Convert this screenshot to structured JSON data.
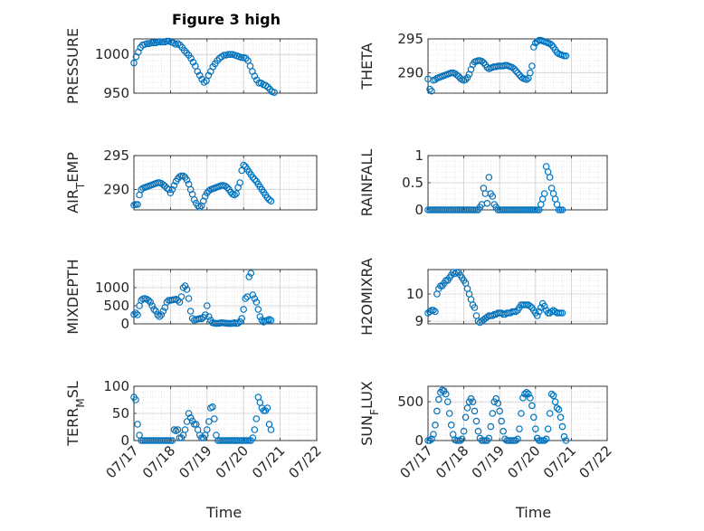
{
  "figure_title": "Figure 3 high",
  "xlabel_left": "Time",
  "xlabel_right": "Time",
  "colors": {
    "marker": "#0072BD",
    "grid": "#dcdcdc",
    "axis": "#262626"
  },
  "chart_data": [
    {
      "type": "scatter",
      "ylabel": "PRESSURE",
      "ylabel_sub": "",
      "xlim": [
        17,
        22
      ],
      "ylim": [
        950,
        1020
      ],
      "yticks": [
        950,
        1000
      ],
      "x": [
        17.0,
        17.06,
        17.12,
        17.18,
        17.24,
        17.3,
        17.36,
        17.42,
        17.48,
        17.54,
        17.6,
        17.66,
        17.72,
        17.78,
        17.84,
        17.9,
        17.96,
        18.02,
        18.08,
        18.14,
        18.2,
        18.26,
        18.32,
        18.38,
        18.44,
        18.5,
        18.56,
        18.62,
        18.68,
        18.74,
        18.8,
        18.86,
        18.92,
        18.98,
        19.04,
        19.1,
        19.16,
        19.22,
        19.28,
        19.34,
        19.4,
        19.46,
        19.52,
        19.58,
        19.64,
        19.7,
        19.76,
        19.82,
        19.88,
        19.94,
        20.0,
        20.06,
        20.12,
        20.18,
        20.24,
        20.3,
        20.36,
        20.42,
        20.48,
        20.54,
        20.6,
        20.66,
        20.72,
        20.78,
        20.84
      ],
      "y": [
        989,
        997,
        1003,
        1009,
        1012,
        1013,
        1014,
        1014,
        1015,
        1015,
        1015,
        1016,
        1016,
        1016,
        1016,
        1017,
        1017,
        1016,
        1015,
        1013,
        1014,
        1012,
        1009,
        1005,
        1002,
        999,
        995,
        990,
        985,
        978,
        973,
        968,
        964,
        966,
        973,
        978,
        984,
        988,
        992,
        995,
        997,
        999,
        999,
        1000,
        1000,
        1000,
        999,
        998,
        997,
        996,
        996,
        995,
        992,
        985,
        978,
        972,
        967,
        963,
        963,
        961,
        960,
        958,
        955,
        952,
        951
      ]
    },
    {
      "type": "scatter",
      "ylabel": "THETA",
      "ylabel_sub": "",
      "xlim": [
        17,
        22
      ],
      "ylim": [
        287,
        295
      ],
      "yticks": [
        290,
        295
      ],
      "x": [
        17.0,
        17.05,
        17.1,
        17.15,
        17.2,
        17.25,
        17.3,
        17.35,
        17.4,
        17.45,
        17.5,
        17.55,
        17.6,
        17.65,
        17.7,
        17.75,
        17.8,
        17.85,
        17.9,
        17.95,
        18.0,
        18.05,
        18.1,
        18.15,
        18.2,
        18.25,
        18.3,
        18.35,
        18.4,
        18.45,
        18.5,
        18.55,
        18.6,
        18.65,
        18.7,
        18.75,
        18.8,
        18.85,
        18.9,
        18.95,
        19.0,
        19.05,
        19.1,
        19.15,
        19.2,
        19.25,
        19.3,
        19.35,
        19.4,
        19.45,
        19.5,
        19.55,
        19.6,
        19.65,
        19.7,
        19.75,
        19.8,
        19.85,
        19.9,
        19.95,
        20.0,
        20.05,
        20.1,
        20.15,
        20.2,
        20.25,
        20.3,
        20.35,
        20.4,
        20.45,
        20.5,
        20.55,
        20.6,
        20.65,
        20.7,
        20.75,
        20.8,
        20.85
      ],
      "y": [
        289.1,
        287.6,
        287.3,
        288.9,
        289.0,
        289.2,
        289.3,
        289.4,
        289.5,
        289.6,
        289.7,
        289.8,
        289.9,
        290.0,
        290.0,
        289.9,
        289.7,
        289.5,
        289.2,
        289.0,
        288.9,
        289.0,
        289.3,
        289.8,
        290.5,
        291.2,
        291.6,
        291.7,
        291.8,
        291.8,
        291.7,
        291.5,
        291.2,
        290.8,
        290.6,
        290.7,
        290.8,
        290.9,
        290.9,
        291.0,
        291.0,
        291.0,
        291.0,
        291.1,
        291.1,
        291.0,
        290.9,
        290.8,
        290.6,
        290.3,
        290.0,
        289.7,
        289.4,
        289.2,
        289.1,
        289.0,
        289.2,
        290.0,
        291.0,
        293.8,
        294.4,
        294.6,
        294.8,
        294.8,
        294.7,
        294.6,
        294.5,
        294.4,
        294.3,
        294.1,
        293.8,
        293.4,
        293.0,
        292.8,
        292.7,
        292.6,
        292.5,
        292.5
      ]
    },
    {
      "type": "scatter",
      "ylabel": "AIR",
      "ylabel_sub": "T",
      "ylabel_rest": "EMP",
      "xlim": [
        17,
        22
      ],
      "ylim": [
        287,
        295
      ],
      "yticks": [
        290,
        295
      ],
      "x": [
        17.0,
        17.05,
        17.1,
        17.15,
        17.2,
        17.25,
        17.3,
        17.35,
        17.4,
        17.45,
        17.5,
        17.55,
        17.6,
        17.65,
        17.7,
        17.75,
        17.8,
        17.85,
        17.9,
        17.95,
        18.0,
        18.05,
        18.1,
        18.15,
        18.2,
        18.25,
        18.3,
        18.35,
        18.4,
        18.45,
        18.5,
        18.55,
        18.6,
        18.65,
        18.7,
        18.75,
        18.8,
        18.85,
        18.9,
        18.95,
        19.0,
        19.05,
        19.1,
        19.15,
        19.2,
        19.25,
        19.3,
        19.35,
        19.4,
        19.45,
        19.5,
        19.55,
        19.6,
        19.65,
        19.7,
        19.75,
        19.8,
        19.85,
        19.9,
        19.95,
        20.0,
        20.05,
        20.1,
        20.15,
        20.2,
        20.25,
        20.3,
        20.35,
        20.4,
        20.45,
        20.5,
        20.55,
        20.6,
        20.65,
        20.7,
        20.75
      ],
      "y": [
        287.7,
        287.8,
        287.8,
        289.2,
        290.0,
        290.2,
        290.3,
        290.4,
        290.5,
        290.6,
        290.7,
        290.8,
        290.9,
        291.0,
        291.0,
        290.9,
        290.7,
        290.5,
        290.2,
        290.0,
        289.5,
        290.0,
        290.6,
        291.2,
        291.6,
        291.9,
        292.0,
        292.0,
        291.8,
        291.4,
        290.8,
        290.0,
        289.3,
        288.5,
        288.0,
        287.6,
        287.4,
        287.6,
        288.3,
        289.0,
        289.5,
        289.8,
        290.0,
        290.1,
        290.2,
        290.3,
        290.4,
        290.5,
        290.6,
        290.6,
        290.5,
        290.3,
        290.0,
        289.6,
        289.3,
        289.2,
        289.4,
        290.3,
        291.0,
        292.8,
        293.6,
        293.4,
        293.0,
        292.6,
        292.2,
        291.8,
        291.5,
        291.2,
        290.8,
        290.4,
        290.0,
        289.6,
        289.2,
        288.8,
        288.5,
        288.3
      ]
    },
    {
      "type": "scatter",
      "ylabel": "RAINFALL",
      "ylabel_sub": "",
      "xlim": [
        17,
        22
      ],
      "ylim": [
        0,
        1
      ],
      "yticks": [
        0,
        0.5,
        1
      ],
      "x": [
        17.0,
        17.05,
        17.1,
        17.15,
        17.2,
        17.25,
        17.3,
        17.35,
        17.4,
        17.45,
        17.5,
        17.55,
        17.6,
        17.65,
        17.7,
        17.75,
        17.8,
        17.85,
        17.9,
        17.95,
        18.0,
        18.05,
        18.1,
        18.15,
        18.2,
        18.25,
        18.3,
        18.35,
        18.4,
        18.45,
        18.5,
        18.55,
        18.6,
        18.65,
        18.7,
        18.75,
        18.8,
        18.85,
        18.9,
        18.95,
        19.0,
        19.05,
        19.1,
        19.15,
        19.2,
        19.25,
        19.3,
        19.35,
        19.4,
        19.45,
        19.5,
        19.55,
        19.6,
        19.65,
        19.7,
        19.75,
        19.8,
        19.85,
        19.9,
        19.95,
        20.0,
        20.05,
        20.1,
        20.15,
        20.2,
        20.25,
        20.3,
        20.35,
        20.4,
        20.45,
        20.5,
        20.55,
        20.6,
        20.65,
        20.7,
        20.75
      ],
      "y": [
        0,
        0,
        0,
        0,
        0,
        0,
        0,
        0,
        0,
        0,
        0,
        0,
        0,
        0,
        0,
        0,
        0,
        0,
        0,
        0,
        0,
        0,
        0,
        0,
        0,
        0,
        0,
        0,
        0,
        0.05,
        0.1,
        0.4,
        0.3,
        0.12,
        0.6,
        0.3,
        0.25,
        0.1,
        0.05,
        0,
        0,
        0,
        0,
        0,
        0,
        0,
        0,
        0,
        0,
        0,
        0,
        0,
        0,
        0,
        0,
        0,
        0,
        0,
        0,
        0,
        0,
        0,
        0,
        0.1,
        0.2,
        0.3,
        0.8,
        0.7,
        0.6,
        0.4,
        0.3,
        0.2,
        0.1,
        0,
        0,
        0
      ]
    },
    {
      "type": "scatter",
      "ylabel": "MIXDEPTH",
      "ylabel_sub": "",
      "xlim": [
        17,
        22
      ],
      "ylim": [
        0,
        1500
      ],
      "yticks": [
        0,
        500,
        1000
      ],
      "x": [
        17.0,
        17.05,
        17.1,
        17.15,
        17.2,
        17.25,
        17.3,
        17.35,
        17.4,
        17.45,
        17.5,
        17.55,
        17.6,
        17.65,
        17.7,
        17.75,
        17.8,
        17.85,
        17.9,
        17.95,
        18.0,
        18.05,
        18.1,
        18.15,
        18.2,
        18.25,
        18.3,
        18.35,
        18.4,
        18.45,
        18.5,
        18.55,
        18.6,
        18.65,
        18.7,
        18.75,
        18.8,
        18.85,
        18.9,
        18.95,
        19.0,
        19.05,
        19.1,
        19.15,
        19.2,
        19.25,
        19.3,
        19.35,
        19.4,
        19.45,
        19.5,
        19.55,
        19.6,
        19.65,
        19.7,
        19.75,
        19.8,
        19.85,
        19.9,
        19.95,
        20.0,
        20.05,
        20.1,
        20.15,
        20.2,
        20.25,
        20.3,
        20.35,
        20.4,
        20.45,
        20.5,
        20.55,
        20.6,
        20.65,
        20.7,
        20.75
      ],
      "y": [
        260,
        300,
        250,
        500,
        650,
        690,
        700,
        680,
        650,
        600,
        500,
        400,
        350,
        250,
        200,
        250,
        350,
        450,
        600,
        650,
        650,
        660,
        670,
        680,
        650,
        600,
        750,
        1000,
        1050,
        950,
        700,
        350,
        150,
        100,
        120,
        130,
        150,
        140,
        180,
        250,
        500,
        200,
        100,
        30,
        20,
        10,
        15,
        20,
        30,
        25,
        20,
        15,
        10,
        10,
        15,
        30,
        10,
        20,
        60,
        150,
        400,
        700,
        750,
        1300,
        1400,
        800,
        700,
        600,
        400,
        200,
        100,
        50,
        80,
        100,
        120,
        100
      ]
    },
    {
      "type": "scatter",
      "ylabel": "H2OMIXRA",
      "ylabel_sub": "",
      "xlim": [
        17,
        22
      ],
      "ylim": [
        8.9,
        10.9
      ],
      "yticks": [
        9,
        10
      ],
      "x": [
        17.0,
        17.05,
        17.1,
        17.15,
        17.2,
        17.25,
        17.3,
        17.35,
        17.4,
        17.45,
        17.5,
        17.55,
        17.6,
        17.65,
        17.7,
        17.75,
        17.8,
        17.85,
        17.9,
        17.95,
        18.0,
        18.05,
        18.1,
        18.15,
        18.2,
        18.25,
        18.3,
        18.35,
        18.4,
        18.45,
        18.5,
        18.55,
        18.6,
        18.65,
        18.7,
        18.75,
        18.8,
        18.85,
        18.9,
        18.95,
        19.0,
        19.05,
        19.1,
        19.15,
        19.2,
        19.25,
        19.3,
        19.35,
        19.4,
        19.45,
        19.5,
        19.55,
        19.6,
        19.65,
        19.7,
        19.75,
        19.8,
        19.85,
        19.9,
        19.95,
        20.0,
        20.05,
        20.1,
        20.15,
        20.2,
        20.25,
        20.3,
        20.35,
        20.4,
        20.45,
        20.5,
        20.55,
        20.6,
        20.65,
        20.7,
        20.75
      ],
      "y": [
        9.3,
        9.35,
        9.4,
        9.4,
        9.35,
        10.0,
        10.2,
        10.3,
        10.3,
        10.4,
        10.5,
        10.5,
        10.6,
        10.7,
        10.8,
        10.75,
        10.8,
        10.8,
        10.7,
        10.6,
        10.5,
        10.4,
        10.2,
        10.0,
        9.8,
        9.6,
        9.5,
        9.2,
        9.0,
        8.95,
        9.0,
        9.05,
        9.1,
        9.15,
        9.2,
        9.2,
        9.2,
        9.25,
        9.25,
        9.3,
        9.3,
        9.3,
        9.25,
        9.25,
        9.3,
        9.3,
        9.3,
        9.35,
        9.35,
        9.35,
        9.4,
        9.5,
        9.6,
        9.6,
        9.6,
        9.6,
        9.6,
        9.55,
        9.5,
        9.4,
        9.3,
        9.2,
        9.35,
        9.5,
        9.65,
        9.55,
        9.4,
        9.3,
        9.3,
        9.35,
        9.4,
        9.35,
        9.3,
        9.3,
        9.3,
        9.3
      ]
    },
    {
      "type": "scatter",
      "ylabel": "TERR",
      "ylabel_sub": "M",
      "ylabel_rest": "SL",
      "xlim": [
        17,
        22
      ],
      "ylim": [
        0,
        100
      ],
      "yticks": [
        0,
        50,
        100
      ],
      "x": [
        17.0,
        17.05,
        17.1,
        17.15,
        17.2,
        17.25,
        17.3,
        17.35,
        17.4,
        17.45,
        17.5,
        17.55,
        17.6,
        17.65,
        17.7,
        17.75,
        17.8,
        17.85,
        17.9,
        17.95,
        18.0,
        18.05,
        18.1,
        18.15,
        18.2,
        18.25,
        18.3,
        18.35,
        18.4,
        18.45,
        18.5,
        18.55,
        18.6,
        18.65,
        18.7,
        18.75,
        18.8,
        18.85,
        18.9,
        18.95,
        19.0,
        19.05,
        19.1,
        19.15,
        19.2,
        19.25,
        19.3,
        19.35,
        19.4,
        19.45,
        19.5,
        19.55,
        19.6,
        19.65,
        19.7,
        19.75,
        19.8,
        19.85,
        19.9,
        19.95,
        20.0,
        20.05,
        20.1,
        20.15,
        20.2,
        20.25,
        20.3,
        20.35,
        20.4,
        20.45,
        20.5,
        20.55,
        20.6,
        20.65,
        20.7,
        20.75
      ],
      "y": [
        80,
        75,
        30,
        10,
        0,
        0,
        0,
        0,
        0,
        0,
        0,
        0,
        0,
        0,
        0,
        0,
        0,
        0,
        0,
        0,
        0,
        0,
        20,
        18,
        20,
        5,
        5,
        10,
        20,
        35,
        50,
        42,
        36,
        30,
        30,
        20,
        10,
        5,
        5,
        10,
        20,
        35,
        60,
        62,
        40,
        10,
        0,
        0,
        0,
        0,
        0,
        0,
        0,
        0,
        0,
        0,
        0,
        0,
        0,
        0,
        0,
        0,
        0,
        0,
        0,
        5,
        20,
        40,
        80,
        70,
        60,
        55,
        55,
        60,
        30,
        20
      ]
    },
    {
      "type": "scatter",
      "ylabel": "SUN",
      "ylabel_sub": "F",
      "ylabel_rest": "LUX",
      "xlim": [
        17,
        22
      ],
      "ylim": [
        0,
        700
      ],
      "yticks": [
        0,
        500
      ],
      "x": [
        17.0,
        17.05,
        17.1,
        17.15,
        17.2,
        17.25,
        17.3,
        17.35,
        17.4,
        17.45,
        17.5,
        17.55,
        17.6,
        17.65,
        17.7,
        17.75,
        17.8,
        17.85,
        17.9,
        17.95,
        18.0,
        18.05,
        18.1,
        18.15,
        18.2,
        18.25,
        18.3,
        18.35,
        18.4,
        18.45,
        18.5,
        18.55,
        18.6,
        18.65,
        18.7,
        18.75,
        18.8,
        18.85,
        18.9,
        18.95,
        19.0,
        19.05,
        19.1,
        19.15,
        19.2,
        19.25,
        19.3,
        19.35,
        19.4,
        19.45,
        19.5,
        19.55,
        19.6,
        19.65,
        19.7,
        19.75,
        19.8,
        19.85,
        19.9,
        19.95,
        20.0,
        20.05,
        20.1,
        20.15,
        20.2,
        20.25,
        20.3,
        20.35,
        20.4,
        20.45,
        20.5,
        20.55,
        20.6,
        20.65,
        20.7,
        20.75,
        20.8,
        20.85
      ],
      "y": [
        0,
        0,
        20,
        80,
        200,
        380,
        530,
        620,
        650,
        640,
        600,
        500,
        350,
        200,
        80,
        10,
        0,
        0,
        0,
        20,
        120,
        300,
        420,
        500,
        540,
        500,
        380,
        250,
        120,
        30,
        0,
        0,
        0,
        0,
        30,
        180,
        350,
        500,
        540,
        480,
        380,
        250,
        120,
        20,
        0,
        0,
        0,
        0,
        0,
        0,
        20,
        150,
        350,
        550,
        600,
        620,
        600,
        550,
        450,
        300,
        150,
        30,
        0,
        0,
        0,
        0,
        20,
        150,
        350,
        600,
        580,
        500,
        420,
        400,
        300,
        180,
        50,
        0
      ]
    }
  ]
}
